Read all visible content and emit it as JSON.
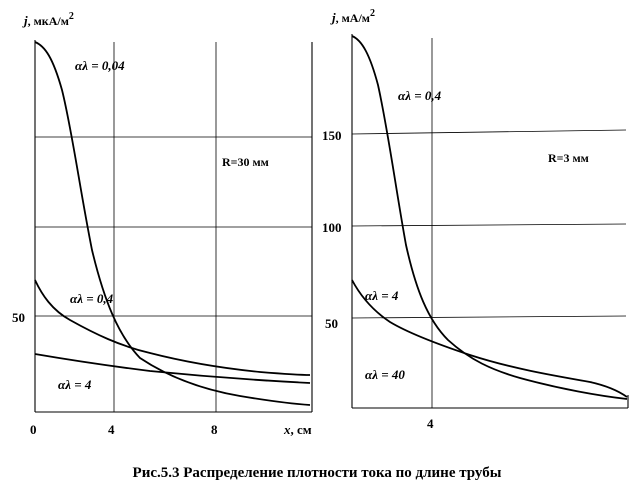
{
  "chart_data": [
    {
      "type": "line",
      "ylabel": "j, мкА/м²",
      "xlabel": "x, см",
      "xlim": [
        0,
        11
      ],
      "ylim": [
        0,
        200
      ],
      "x_ticks": [
        "0",
        "4",
        "8"
      ],
      "y_ticks": [
        "50"
      ],
      "grid": true,
      "annotation": "R=30 мм",
      "series": [
        {
          "name": "αλ = 0,04",
          "x": [
            0,
            0.5,
            1,
            1.5,
            2,
            2.5,
            3,
            3.5,
            4,
            5,
            6,
            7,
            8,
            9,
            10,
            11
          ],
          "y": [
            200,
            188,
            165,
            135,
            100,
            72,
            52,
            38,
            30,
            22,
            17,
            13,
            10,
            8,
            6,
            4
          ]
        },
        {
          "name": "αλ = 0,4",
          "x": [
            0,
            0.5,
            1,
            2,
            3,
            4,
            5,
            6,
            7,
            8,
            9,
            10,
            11
          ],
          "y": [
            72,
            62,
            54,
            46,
            41,
            37,
            33,
            30,
            28,
            26,
            24,
            23,
            22
          ]
        },
        {
          "name": "αλ = 4",
          "x": [
            0,
            1,
            2,
            3,
            4,
            5,
            6,
            7,
            8,
            9,
            10,
            11
          ],
          "y": [
            34,
            32,
            30,
            28,
            27,
            26,
            25,
            24,
            23,
            22,
            21,
            20
          ]
        }
      ]
    },
    {
      "type": "line",
      "ylabel": "j, мА/м²",
      "xlim": [
        0,
        11
      ],
      "ylim": [
        0,
        200
      ],
      "x_ticks": [
        "4"
      ],
      "y_ticks": [
        "50",
        "100",
        "150"
      ],
      "grid": true,
      "annotation": "R=3 мм",
      "series": [
        {
          "name": "αλ = 0,4",
          "x": [
            0,
            0.5,
            1,
            1.5,
            2,
            2.5,
            3,
            3.5,
            4,
            5,
            6,
            7,
            8,
            9,
            10,
            11
          ],
          "y": [
            200,
            188,
            165,
            135,
            100,
            72,
            52,
            40,
            33,
            25,
            20,
            17,
            14,
            12,
            10,
            8
          ]
        },
        {
          "name": "αλ = 4",
          "x": [
            0,
            0.5,
            1,
            2,
            3,
            4,
            5,
            6,
            7,
            8,
            9,
            10,
            11
          ],
          "y": [
            70,
            62,
            55,
            48,
            43,
            39,
            35,
            32,
            29,
            27,
            25,
            22,
            17
          ]
        },
        {
          "name": "αλ = 40",
          "x": [
            0,
            11
          ],
          "y": [
            null,
            null
          ]
        }
      ]
    }
  ],
  "figure": {
    "left_ylabel_j": "j",
    "left_ylabel_unit": ", мкА/м",
    "left_ylabel_sup": "2",
    "right_ylabel_j": "j",
    "right_ylabel_unit": ", мА/м",
    "right_ylabel_sup": "2",
    "xlabel_x": "x",
    "xlabel_unit": ", см",
    "left_x_tick_0": "0",
    "left_x_tick_4": "4",
    "left_x_tick_8": "8",
    "left_y_tick_50": "50",
    "right_y_tick_150": "150",
    "right_y_tick_100": "100",
    "right_y_tick_50": "50",
    "right_x_tick_4": "4",
    "left_ann_1": "αλ = 0,04",
    "left_ann_2": "αλ = 0,4",
    "left_ann_3": "αλ = 4",
    "left_R": "R=30 мм",
    "right_ann_1": "αλ = 0,4",
    "right_ann_2": "αλ = 4",
    "right_ann_3": "αλ = 40",
    "right_R": "R=3 мм",
    "caption": "Рис.5.3 Распределение плотности тока по длине трубы"
  }
}
